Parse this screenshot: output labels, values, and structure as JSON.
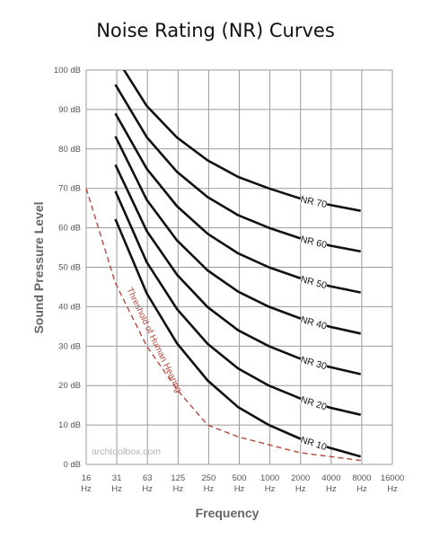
{
  "chart_data": {
    "type": "line",
    "title": "Noise Rating (NR) Curves",
    "xlabel": "Frequency",
    "ylabel": "Sound Pressure Level",
    "x_ticks": [
      "16",
      "31",
      "63",
      "125",
      "250",
      "500",
      "1000",
      "2000",
      "4000",
      "8000",
      "16000"
    ],
    "x_unit": "Hz",
    "y_ticks": [
      "0 dB",
      "10 dB",
      "20 dB",
      "30 dB",
      "40 dB",
      "50 dB",
      "60 dB",
      "70 dB",
      "80 dB",
      "90 dB",
      "100 dB"
    ],
    "ylim": [
      0,
      100
    ],
    "grid": true,
    "series": [
      {
        "name": "NR 10",
        "x": [
          31,
          63,
          125,
          250,
          500,
          1000,
          2000,
          4000,
          8000
        ],
        "y": [
          62.2,
          43.4,
          30.7,
          21.3,
          14.5,
          10.0,
          6.6,
          4.2,
          2.0
        ]
      },
      {
        "name": "NR 20",
        "x": [
          31,
          63,
          125,
          250,
          500,
          1000,
          2000,
          4000,
          8000
        ],
        "y": [
          69.3,
          51.3,
          39.4,
          30.6,
          24.3,
          20.0,
          16.8,
          14.4,
          12.6
        ]
      },
      {
        "name": "NR 30",
        "x": [
          31,
          63,
          125,
          250,
          500,
          1000,
          2000,
          4000,
          8000
        ],
        "y": [
          76.0,
          59.2,
          48.1,
          39.9,
          34.0,
          30.0,
          26.9,
          24.7,
          22.9
        ]
      },
      {
        "name": "NR 40",
        "x": [
          31,
          63,
          125,
          250,
          500,
          1000,
          2000,
          4000,
          8000
        ],
        "y": [
          83.2,
          67.1,
          56.8,
          49.2,
          43.8,
          40.0,
          37.1,
          34.9,
          33.2
        ]
      },
      {
        "name": "NR 50",
        "x": [
          31,
          63,
          125,
          250,
          500,
          1000,
          2000,
          4000,
          8000
        ],
        "y": [
          89.0,
          75.0,
          65.5,
          58.5,
          53.5,
          50.0,
          47.3,
          45.2,
          43.6
        ]
      },
      {
        "name": "NR 60",
        "x": [
          31,
          63,
          125,
          250,
          500,
          1000,
          2000,
          4000,
          8000
        ],
        "y": [
          96.3,
          83.0,
          74.2,
          67.8,
          63.2,
          60.0,
          57.4,
          55.5,
          54.0
        ]
      },
      {
        "name": "NR 70",
        "x": [
          31,
          63,
          125,
          250,
          500,
          1000,
          2000,
          4000,
          8000
        ],
        "y": [
          103.5,
          90.9,
          82.9,
          77.1,
          72.9,
          70.0,
          67.5,
          65.8,
          64.3
        ]
      },
      {
        "name": "Threshold of Human Hearing",
        "x": [
          16,
          31,
          63,
          125,
          250,
          500,
          1000,
          2000,
          4000,
          8000
        ],
        "y": [
          70,
          46,
          30,
          19,
          10,
          7,
          5,
          3,
          2,
          1
        ],
        "style": "dashed",
        "color": "#b5483b"
      }
    ],
    "label_color": "#b5483b",
    "curve_color": "#111111",
    "grid_color": "#9a9a9a"
  },
  "watermark": "archtoolbox.com"
}
